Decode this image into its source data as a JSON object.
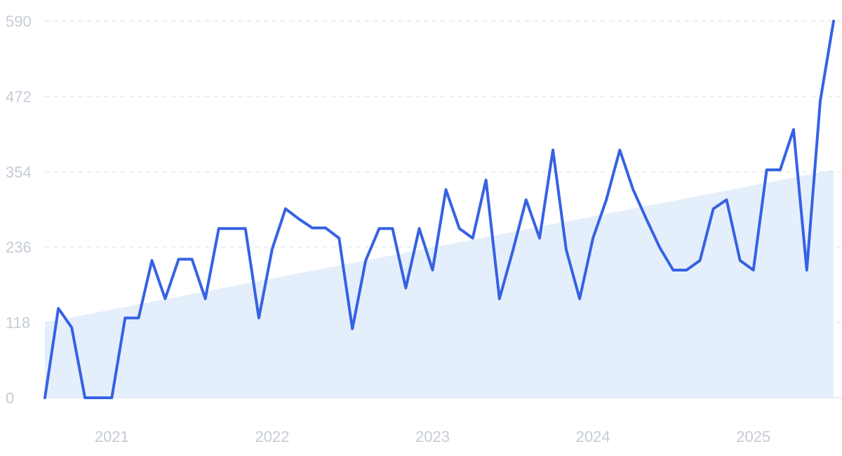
{
  "chart_data": {
    "type": "line",
    "title": "",
    "xlabel": "",
    "ylabel": "",
    "ylim": [
      0,
      590
    ],
    "yticks": [
      0,
      118,
      236,
      354,
      472,
      590
    ],
    "x_tick_labels": [
      {
        "label": "2021",
        "x": 2021.0
      },
      {
        "label": "2022",
        "x": 2022.0
      },
      {
        "label": "2023",
        "x": 2023.0
      },
      {
        "label": "2024",
        "x": 2024.0
      },
      {
        "label": "2025",
        "x": 2025.0
      }
    ],
    "xlim": [
      2020.583,
      2025.5
    ],
    "grid": "horizontal dashed",
    "legend": "none",
    "series": [
      {
        "color": "#3662e3",
        "x": [
          2020.583,
          2020.667,
          2020.75,
          2020.833,
          2020.917,
          2021.0,
          2021.083,
          2021.167,
          2021.25,
          2021.333,
          2021.417,
          2021.5,
          2021.583,
          2021.667,
          2021.75,
          2021.833,
          2021.917,
          2022.0,
          2022.083,
          2022.167,
          2022.25,
          2022.333,
          2022.417,
          2022.5,
          2022.583,
          2022.667,
          2022.75,
          2022.833,
          2022.917,
          2023.0,
          2023.083,
          2023.167,
          2023.25,
          2023.333,
          2023.417,
          2023.5,
          2023.583,
          2023.667,
          2023.75,
          2023.833,
          2023.917,
          2024.0,
          2024.083,
          2024.167,
          2024.25,
          2024.333,
          2024.417,
          2024.5,
          2024.583,
          2024.667,
          2024.75,
          2024.833,
          2024.917,
          2025.0,
          2025.083,
          2025.167,
          2025.25,
          2025.333,
          2025.417,
          2025.5
        ],
        "values": [
          0,
          140,
          110,
          0,
          0,
          0,
          125,
          125,
          215,
          155,
          217,
          217,
          155,
          265,
          265,
          265,
          125,
          233,
          296,
          280,
          266,
          266,
          250,
          108,
          215,
          265,
          265,
          172,
          265,
          200,
          326,
          265,
          250,
          341,
          155,
          230,
          310,
          250,
          388,
          232,
          155,
          250,
          310,
          388,
          326,
          280,
          235,
          200,
          200,
          215,
          296,
          310,
          215,
          200,
          357,
          357,
          420,
          200,
          465,
          590
        ]
      },
      {
        "type": "area",
        "color": "#dce9fb",
        "x": [
          2020.583,
          2025.5
        ],
        "values": [
          118,
          357
        ]
      }
    ]
  }
}
